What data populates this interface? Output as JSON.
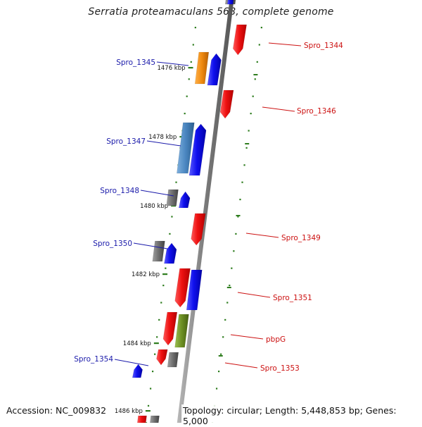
{
  "title": "Serratia proteamaculans 568, complete genome",
  "footer": {
    "accession": "Accession: NC_009832",
    "topology": "Topology: circular; Length: 5,448,853 bp; Genes: 5,000"
  },
  "colors": {
    "backbone": "#8a8a8a",
    "tick": "#2e7d1e",
    "label_left": "#1a1aaa",
    "label_right": "#cc1111",
    "blue": "#1010ee",
    "red": "#ee1111",
    "orange": "#ef8a10",
    "steelblue": "#4a86c0",
    "gray": "#6e6e6e",
    "olive": "#6b8e23"
  },
  "ruler": [
    {
      "label": "1476 kbp"
    },
    {
      "label": "1478 kbp"
    },
    {
      "label": "1480 kbp"
    },
    {
      "label": "1482 kbp"
    },
    {
      "label": "1484 kbp"
    },
    {
      "label": "1486 kbp"
    }
  ],
  "genes": [
    {
      "name": "Spro_1344",
      "side": "right",
      "color": "red"
    },
    {
      "name": "Spro_1345",
      "side": "left",
      "color": "blue",
      "cog_color": "orange"
    },
    {
      "name": "Spro_1346",
      "side": "right",
      "color": "red"
    },
    {
      "name": "Spro_1347",
      "side": "left",
      "color": "blue",
      "cog_color": "steelblue"
    },
    {
      "name": "Spro_1348",
      "side": "left",
      "color": "blue",
      "cog_color": "gray"
    },
    {
      "name": "Spro_1349",
      "side": "right",
      "color": "red"
    },
    {
      "name": "Spro_1350",
      "side": "left",
      "color": "blue",
      "cog_color": "gray"
    },
    {
      "name": "Spro_1351",
      "side": "right",
      "color": "red",
      "cog_color": "blue"
    },
    {
      "name": "pbpG",
      "side": "right",
      "color": "red",
      "cog_color": "olive"
    },
    {
      "name": "Spro_1353",
      "side": "right",
      "color": "red",
      "cog_color": "gray"
    },
    {
      "name": "Spro_1354",
      "side": "left",
      "color": "blue"
    }
  ]
}
